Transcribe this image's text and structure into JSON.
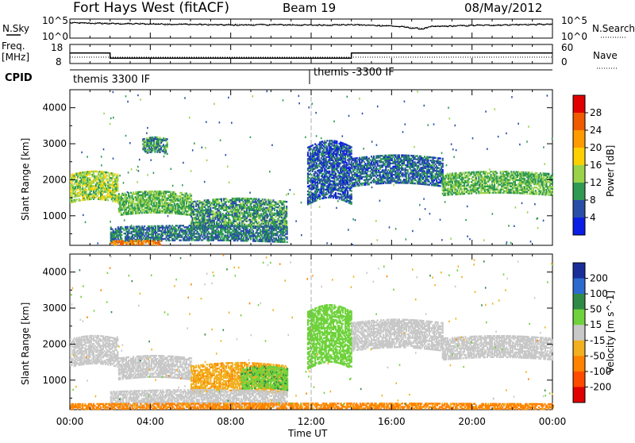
{
  "header": {
    "station": "Fort Hays West (fitACF)",
    "beam": "Beam 19",
    "date": "08/May/2012"
  },
  "noise_panel": {
    "left_label": "N.Sky",
    "right_label": "N.Search",
    "ticks": [
      "10^5",
      "10^0"
    ]
  },
  "freq_panel": {
    "left_label_1": "Freq.",
    "left_label_2": "[MHz]",
    "right_label": "Nave",
    "left_ticks": [
      "18",
      "8"
    ],
    "right_ticks": [
      "60",
      "0"
    ]
  },
  "cpid_panel": {
    "label": "CPID",
    "modes": [
      "themis 3300 IF",
      "themis -3300 IF"
    ]
  },
  "power_panel": {
    "ylabel": "Slant Range [km]",
    "cbar_label": "Power [dB]",
    "cbar_ticks": [
      "28",
      "24",
      "20",
      "16",
      "12",
      "8",
      "4"
    ],
    "cbar_colors": [
      "#e00000",
      "#f05a00",
      "#ff9a00",
      "#ffd000",
      "#9ad24a",
      "#2e9a52",
      "#2a4ea8",
      "#0a1ee6"
    ]
  },
  "velocity_panel": {
    "ylabel": "Slant Range [km]",
    "cbar_label": "Velocity [m s^-1]",
    "cbar_ticks": [
      "200",
      "100",
      "50",
      "15",
      "-15",
      "-50",
      "-100",
      "-200"
    ],
    "cbar_colors": [
      "#1a2e9a",
      "#2d6ad0",
      "#2e8a46",
      "#6fd23c",
      "#c8c8c8",
      "#f2b020",
      "#ff8200",
      "#ff4a00",
      "#e00000"
    ]
  },
  "x_axis": {
    "label": "Time UT",
    "ticks": [
      "00:00",
      "04:00",
      "08:00",
      "12:00",
      "16:00",
      "20:00",
      "00:00"
    ]
  },
  "chart_data": [
    {
      "type": "line",
      "title": "N.Sky / N.Search",
      "x_unit": "hours UT",
      "x": [
        0,
        2,
        4,
        6,
        8,
        10,
        12,
        14,
        16,
        17.5,
        18,
        20,
        22,
        24
      ],
      "series": [
        {
          "name": "N.Sky",
          "values_log10": [
            4.0,
            3.8,
            3.7,
            3.6,
            3.4,
            3.5,
            3.4,
            3.5,
            3.2,
            2.4,
            3.0,
            3.3,
            3.5,
            3.6
          ]
        },
        {
          "name": "N.Search",
          "values_log10": [
            4.1,
            3.9,
            3.8,
            3.7,
            3.6,
            3.6,
            3.5,
            3.6,
            3.3,
            2.6,
            3.1,
            3.4,
            3.6,
            3.7
          ]
        }
      ],
      "ylim_log10": [
        0,
        5
      ]
    },
    {
      "type": "line",
      "title": "Freq. / Nave",
      "x_unit": "hours UT",
      "segments": [
        {
          "x_start": 0,
          "x_end": 2.0,
          "freq_mhz": 13.5,
          "nave": 20
        },
        {
          "x_start": 2.0,
          "x_end": 14.0,
          "freq_mhz": 10.8,
          "nave": 20
        },
        {
          "x_start": 14.0,
          "x_end": 24,
          "freq_mhz": 13.5,
          "nave": 20
        }
      ],
      "freq_ylim": [
        8,
        18
      ],
      "nave_ylim": [
        0,
        60
      ]
    },
    {
      "type": "heatmap",
      "title": "Power [dB]",
      "x_unit": "hours UT",
      "y_unit": "km",
      "ylim": [
        180,
        4500
      ],
      "xlim": [
        0,
        24
      ],
      "echo_regions": [
        {
          "t0": 0.0,
          "t1": 2.4,
          "r0": 1350,
          "r1": 2150,
          "power": 14
        },
        {
          "t0": 2.4,
          "t1": 6.0,
          "r0": 1000,
          "r1": 1600,
          "power": 12
        },
        {
          "t0": 6.0,
          "t1": 10.8,
          "r0": 600,
          "r1": 1400,
          "power": 10
        },
        {
          "t0": 2.0,
          "t1": 10.8,
          "r0": 250,
          "r1": 700,
          "power": 8
        },
        {
          "t0": 2.0,
          "t1": 4.5,
          "r0": 180,
          "r1": 300,
          "power": 24
        },
        {
          "t0": 11.8,
          "t1": 14.0,
          "r0": 1300,
          "r1": 2900,
          "power": 6
        },
        {
          "t0": 14.0,
          "t1": 18.5,
          "r0": 1800,
          "r1": 2600,
          "power": 7
        },
        {
          "t0": 18.5,
          "t1": 24.0,
          "r0": 1550,
          "r1": 2150,
          "power": 12
        },
        {
          "t0": 3.6,
          "t1": 4.8,
          "r0": 2700,
          "r1": 3150,
          "power": 9
        }
      ]
    },
    {
      "type": "heatmap",
      "title": "Velocity [m s^-1]",
      "x_unit": "hours UT",
      "y_unit": "km",
      "ylim": [
        180,
        4500
      ],
      "xlim": [
        0,
        24
      ],
      "echo_regions": [
        {
          "t0": 0.0,
          "t1": 2.4,
          "r0": 1350,
          "r1": 2150,
          "velocity": 0
        },
        {
          "t0": 2.4,
          "t1": 6.0,
          "r0": 1000,
          "r1": 1600,
          "velocity": 0
        },
        {
          "t0": 6.0,
          "t1": 10.8,
          "r0": 600,
          "r1": 1400,
          "velocity": -40
        },
        {
          "t0": 8.5,
          "t1": 10.8,
          "r0": 700,
          "r1": 1300,
          "velocity": 40
        },
        {
          "t0": 2.0,
          "t1": 10.8,
          "r0": 250,
          "r1": 700,
          "velocity": 0
        },
        {
          "t0": 11.8,
          "t1": 14.0,
          "r0": 1300,
          "r1": 2900,
          "velocity": 35
        },
        {
          "t0": 14.0,
          "t1": 18.5,
          "r0": 1800,
          "r1": 2600,
          "velocity": 0
        },
        {
          "t0": 18.5,
          "t1": 24.0,
          "r0": 1550,
          "r1": 2150,
          "velocity": 0
        },
        {
          "t0": 0.0,
          "t1": 24.0,
          "r0": 180,
          "r1": 320,
          "velocity": -60
        }
      ]
    }
  ]
}
